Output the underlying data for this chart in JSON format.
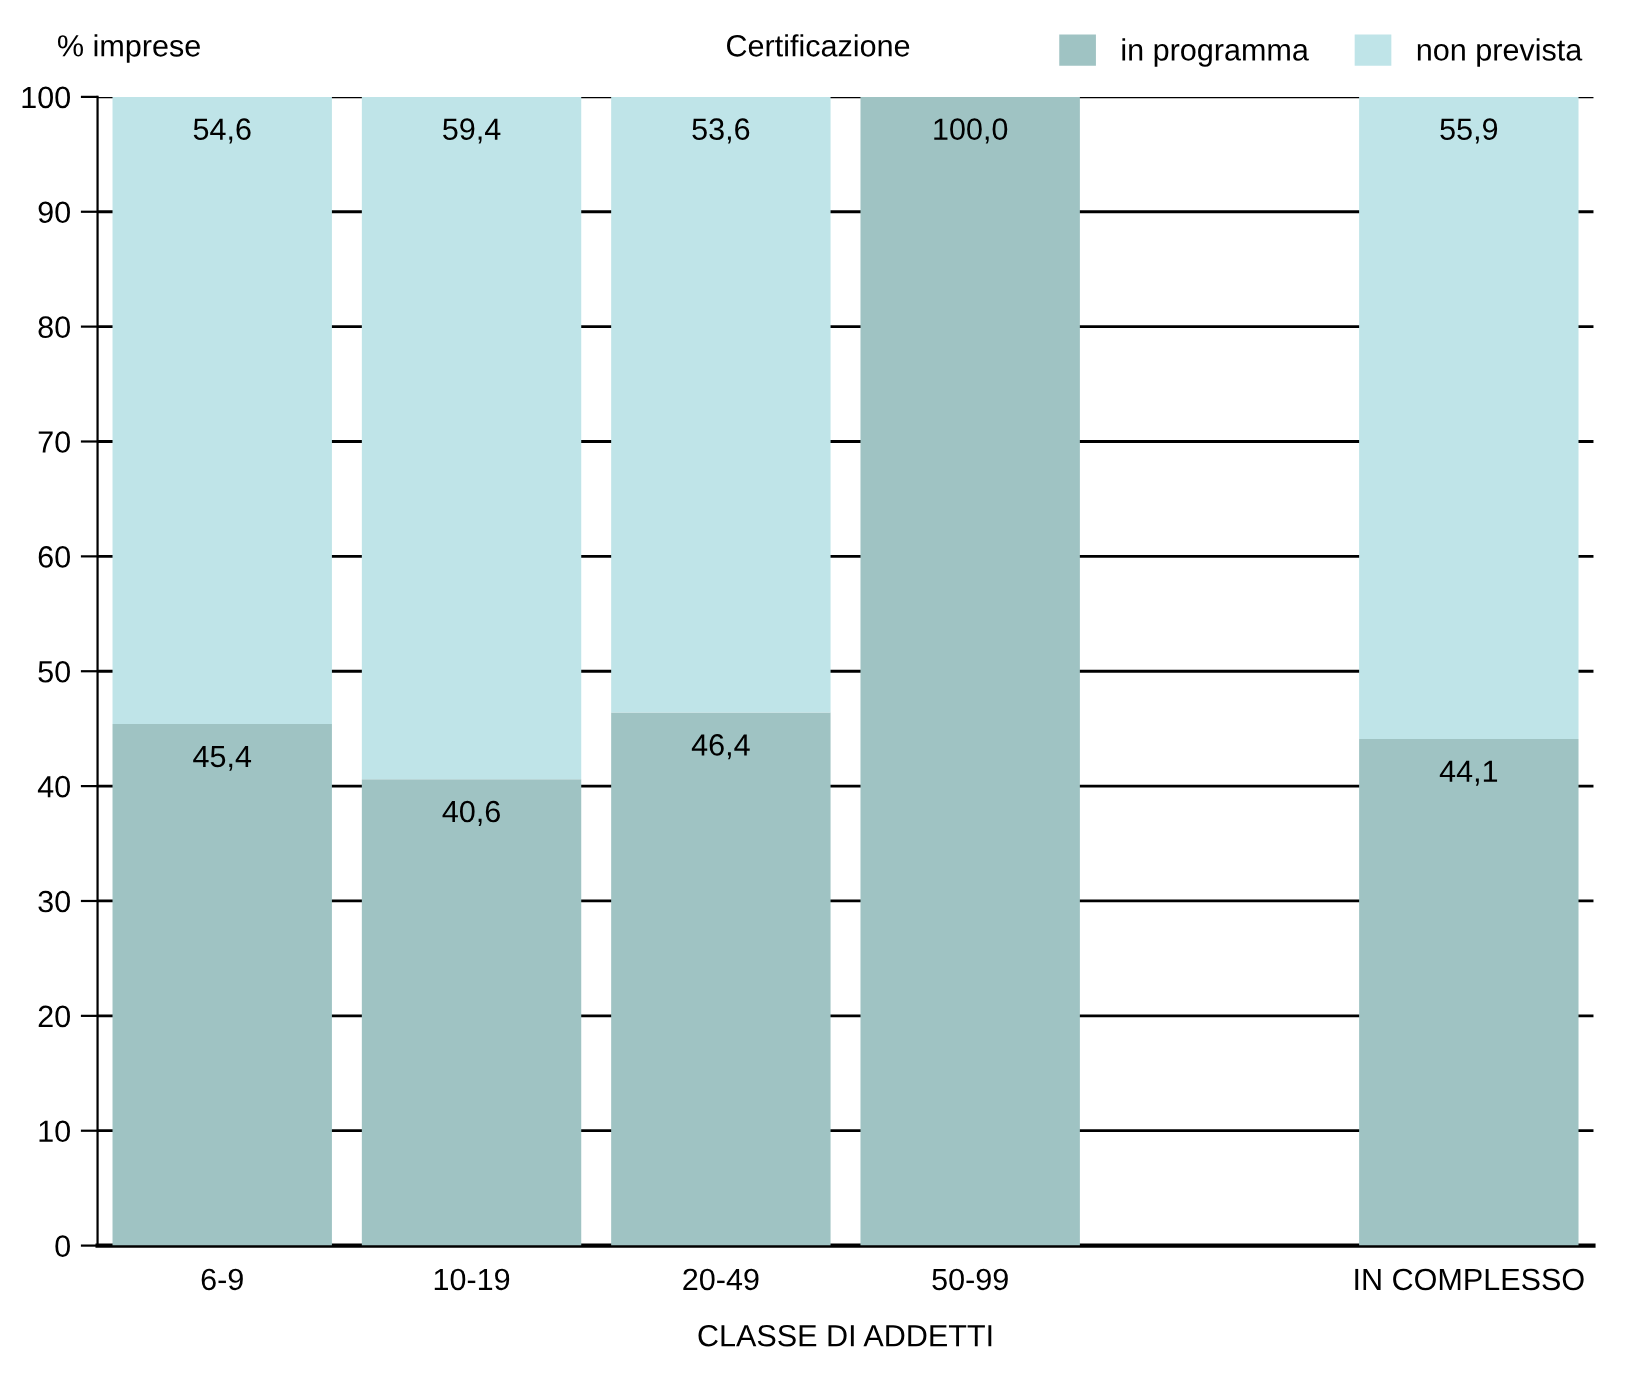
{
  "chart_data": {
    "type": "bar",
    "stacked": true,
    "ylabel": "% imprese",
    "xlabel": "CLASSE DI ADDETTI",
    "legend_title": "Certificazione",
    "legend": "top right",
    "grid": "y",
    "categories": [
      "6-9",
      "10-19",
      "20-49",
      "50-99",
      null,
      "IN COMPLESSO"
    ],
    "series": [
      {
        "name": "in programma",
        "color": "#9fc3c3",
        "values": [
          45.4,
          40.6,
          46.4,
          100.0,
          null,
          44.1
        ],
        "value_labels": [
          "45,4",
          "40,6",
          "46,4",
          "100,0",
          null,
          "44,1"
        ]
      },
      {
        "name": "non prevista",
        "color": "#bfe4e8",
        "values": [
          54.6,
          59.4,
          53.6,
          null,
          null,
          55.9
        ],
        "value_labels": [
          "54,6",
          "59,4",
          "53,6",
          null,
          null,
          "55,9"
        ]
      }
    ],
    "ylim": [
      0,
      100
    ],
    "yticks": [
      0,
      10,
      20,
      30,
      40,
      50,
      60,
      70,
      80,
      90,
      100
    ]
  }
}
